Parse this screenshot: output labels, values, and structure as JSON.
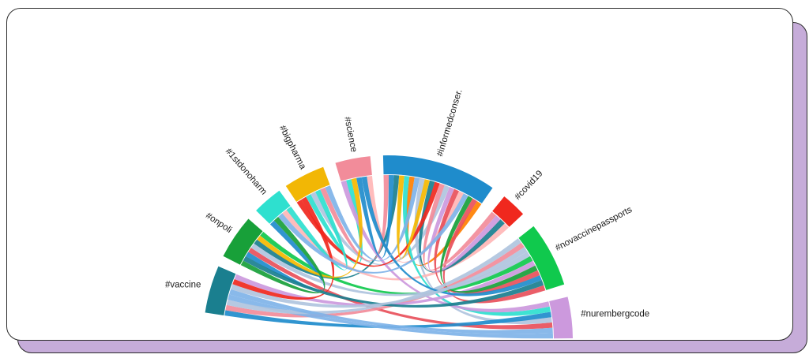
{
  "diagram": {
    "type": "chord",
    "groups": [
      {
        "label": "#vaccine",
        "color": "#1a7f8f"
      },
      {
        "label": "#onpoli",
        "color": "#18a039"
      },
      {
        "label": "#1stdonoharm",
        "color": "#2ee0cf"
      },
      {
        "label": "#bigpharma",
        "color": "#f2b705"
      },
      {
        "label": "#science",
        "color": "#f28c9a"
      },
      {
        "label": "#informedconser.",
        "color": "#1f8ccc"
      },
      {
        "label": "#covid19",
        "color": "#f0281e"
      },
      {
        "label": "#novaccinepassports",
        "color": "#10c94d"
      },
      {
        "label": "#nurembergcode",
        "color": "#cc99dd"
      }
    ],
    "ribbon_palette": [
      "#1a7f8f",
      "#f0281e",
      "#f5b800",
      "#1f8ccc",
      "#10c94d",
      "#f28c9a",
      "#cc99dd",
      "#ff7f00",
      "#2ee0cf",
      "#7fb3e8",
      "#ffb6b6",
      "#18a039",
      "#b0c4de",
      "#e8505b"
    ]
  }
}
